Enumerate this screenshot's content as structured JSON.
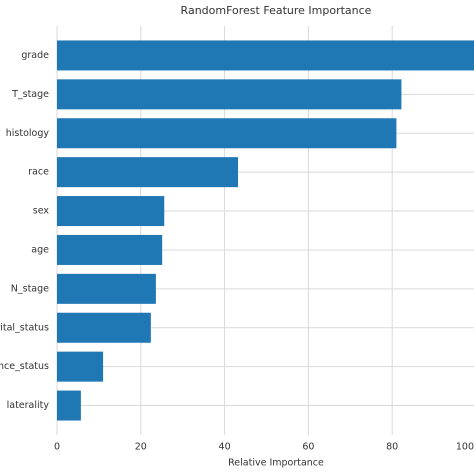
{
  "chart_data": {
    "type": "barh",
    "title": "RandomForest Feature Importance",
    "xlabel": "Relative Importance",
    "categories": [
      "grade",
      "T_stage",
      "histology",
      "race",
      "sex",
      "age",
      "N_stage",
      "rital_status",
      "ance_status",
      "laterality"
    ],
    "values": [
      100,
      82.2,
      81,
      43.2,
      25.6,
      25.1,
      23.6,
      22.4,
      11,
      5.7
    ],
    "color": "#1f77b4",
    "xlim": [
      0,
      100
    ],
    "xticks": [
      0,
      20,
      40,
      60,
      80,
      100
    ],
    "grid": true
  }
}
